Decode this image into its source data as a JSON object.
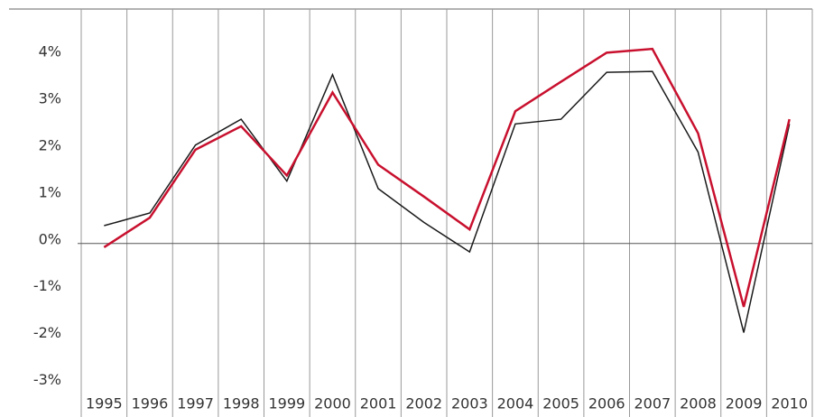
{
  "chart_data": {
    "type": "line",
    "categories": [
      "1995",
      "1996",
      "1997",
      "1998",
      "1999",
      "2000",
      "2001",
      "2002",
      "2003",
      "2004",
      "2005",
      "2006",
      "2007",
      "2008",
      "2009",
      "2010"
    ],
    "series": [
      {
        "color": "#1a1a1a",
        "values": [
          0.38,
          0.65,
          2.1,
          2.65,
          1.33,
          3.6,
          1.17,
          0.45,
          -0.18,
          2.55,
          2.65,
          3.65,
          3.67,
          1.95,
          -1.9,
          2.55
        ]
      },
      {
        "color": "#c8102e",
        "values": [
          -0.08,
          0.55,
          2.0,
          2.5,
          1.45,
          3.22,
          1.68,
          1.0,
          0.3,
          2.82,
          3.45,
          4.07,
          4.15,
          2.35,
          -1.35,
          2.65
        ]
      }
    ],
    "ylim": [
      -3.7,
      5
    ],
    "yticks": [
      {
        "value": -3,
        "label": "-3%"
      },
      {
        "value": -2,
        "label": "-2%"
      },
      {
        "value": -1,
        "label": "-1%"
      },
      {
        "value": 0,
        "label": "0%"
      },
      {
        "value": 1,
        "label": "1%"
      },
      {
        "value": 2,
        "label": "2%"
      },
      {
        "value": 3,
        "label": "3%"
      },
      {
        "value": 4,
        "label": "4%"
      }
    ],
    "grid": true
  }
}
